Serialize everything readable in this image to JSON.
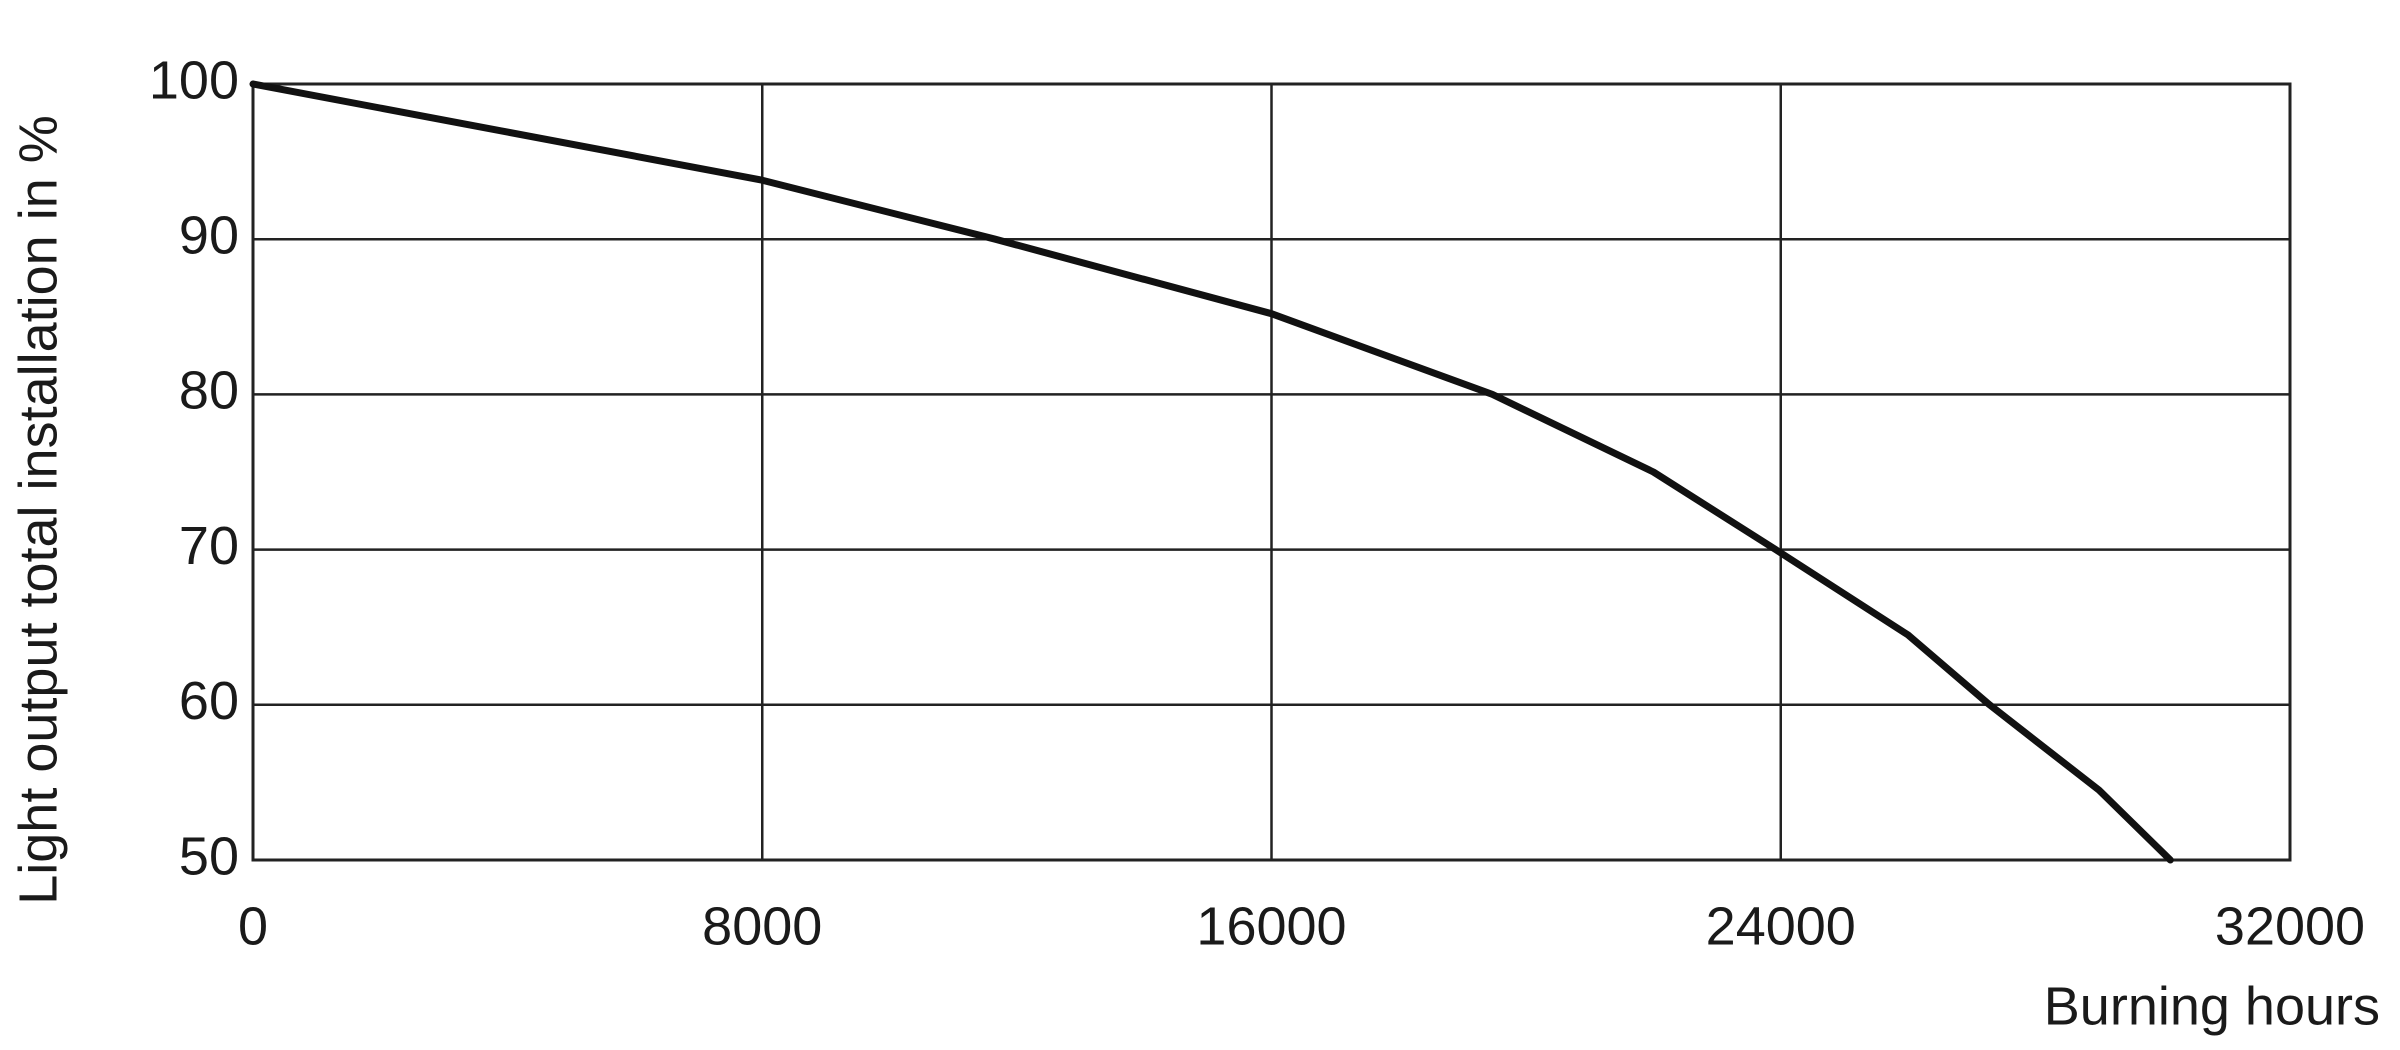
{
  "chart_data": {
    "type": "line",
    "x_label": "Burning hours",
    "y_label": "Light output total installation in %",
    "x": [
      0,
      4000,
      8000,
      11660,
      16000,
      19470,
      22000,
      23920,
      26000,
      27280,
      29000,
      30120
    ],
    "series": [
      {
        "color": "#111111",
        "values": [
          100,
          96.9,
          93.8,
          90,
          85.2,
          80,
          75,
          70,
          64.5,
          60,
          54.5,
          50
        ]
      }
    ],
    "xlim": [
      0,
      32000
    ],
    "xticks": [
      0,
      8000,
      16000,
      24000,
      32000
    ],
    "ylim": [
      50,
      100
    ],
    "yticks": [
      50,
      60,
      70,
      80,
      90,
      100
    ],
    "grid": true
  }
}
